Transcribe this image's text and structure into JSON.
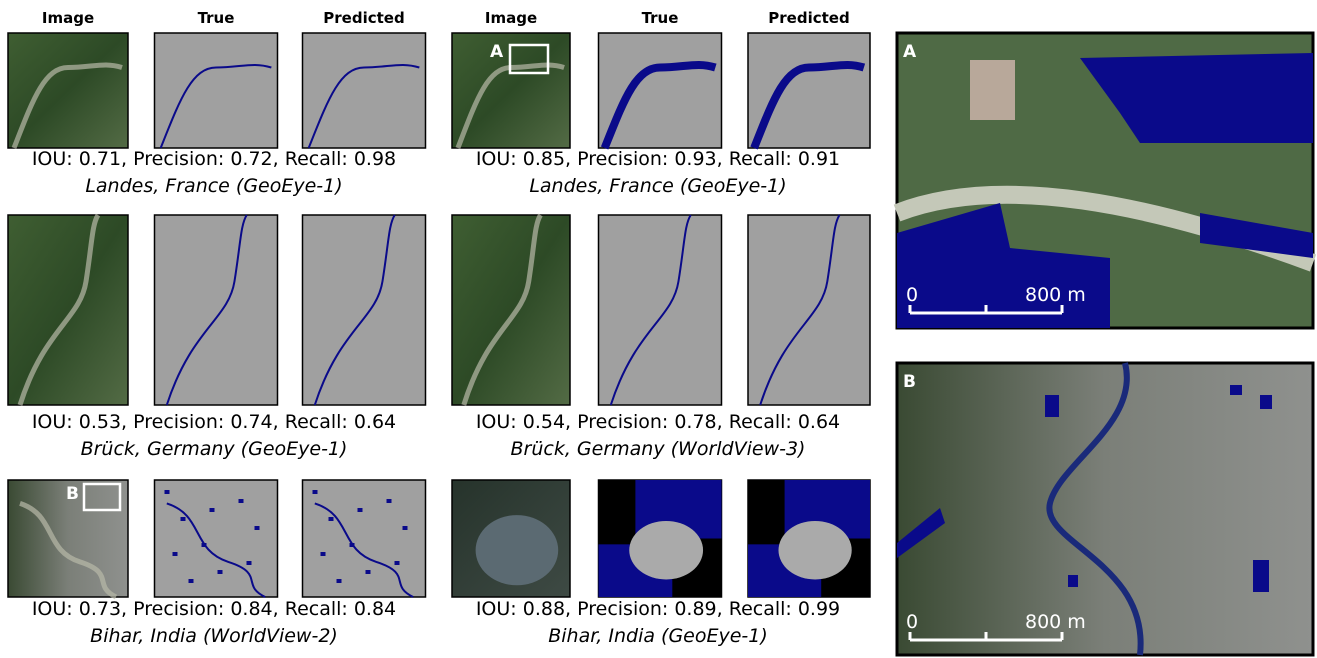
{
  "column_headers": [
    "Image",
    "True",
    "Predicted"
  ],
  "panels": [
    {
      "metrics": "IOU: 0.71, Precision: 0.72, Recall: 0.98",
      "location": "Landes, France (GeoEye-1)"
    },
    {
      "metrics": "IOU: 0.85, Precision: 0.93, Recall: 0.91",
      "location": "Landes, France (GeoEye-1)"
    },
    {
      "metrics": "IOU: 0.53, Precision: 0.74, Recall: 0.64",
      "location": "Brück, Germany (GeoEye-1)"
    },
    {
      "metrics": "IOU: 0.54, Precision: 0.78, Recall: 0.64",
      "location": "Brück, Germany (WorldView-3)"
    },
    {
      "metrics": "IOU: 0.73, Precision: 0.84, Recall: 0.84",
      "location": "Bihar, India (WorldView-2)"
    },
    {
      "metrics": "IOU: 0.88, Precision: 0.89, Recall: 0.99",
      "location": "Bihar, India (GeoEye-1)"
    }
  ],
  "insets": [
    {
      "label": "A"
    },
    {
      "label": "B"
    }
  ],
  "scale_bar": {
    "start": "0",
    "end": "800 m"
  }
}
